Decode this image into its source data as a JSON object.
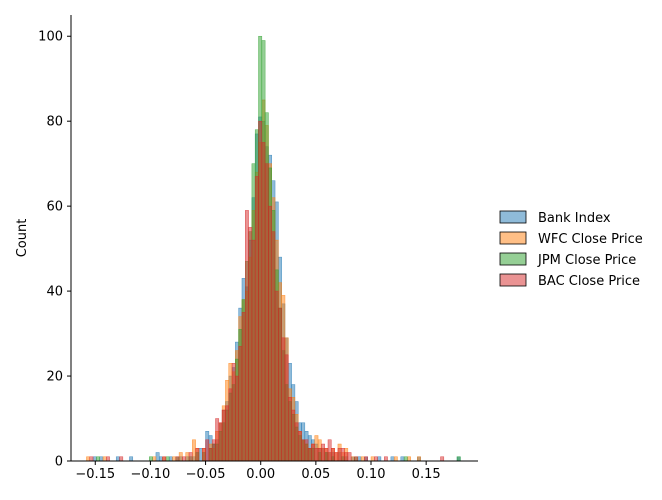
{
  "chart_data": {
    "type": "bar",
    "title": "",
    "xlabel": "",
    "ylabel": "Count",
    "xlim": [
      -0.172,
      0.197
    ],
    "ylim": [
      0,
      105
    ],
    "bin_width": 0.003,
    "x_ticks": [
      -0.15,
      -0.1,
      -0.05,
      0.0,
      0.05,
      0.1,
      0.15
    ],
    "x_tick_labels": [
      "−0.15",
      "−0.10",
      "−0.05",
      "0.00",
      "0.05",
      "0.10",
      "0.15"
    ],
    "y_ticks": [
      0,
      20,
      40,
      60,
      80,
      100
    ],
    "y_tick_labels": [
      "0",
      "20",
      "40",
      "60",
      "80",
      "100"
    ],
    "grid": false,
    "legend_position": "right",
    "series": [
      {
        "name": "Bank Index",
        "color": "#1f77b4",
        "bins": [
          [
            -0.152,
            1
          ],
          [
            -0.146,
            1
          ],
          [
            -0.131,
            1
          ],
          [
            -0.119,
            1
          ],
          [
            -0.095,
            2
          ],
          [
            -0.092,
            1
          ],
          [
            -0.083,
            1
          ],
          [
            -0.074,
            1
          ],
          [
            -0.068,
            1
          ],
          [
            -0.062,
            1
          ],
          [
            -0.056,
            3
          ],
          [
            -0.05,
            7
          ],
          [
            -0.047,
            6
          ],
          [
            -0.044,
            4
          ],
          [
            -0.041,
            5
          ],
          [
            -0.038,
            9
          ],
          [
            -0.035,
            12
          ],
          [
            -0.032,
            14
          ],
          [
            -0.029,
            20
          ],
          [
            -0.026,
            22
          ],
          [
            -0.023,
            28
          ],
          [
            -0.02,
            36
          ],
          [
            -0.017,
            43
          ],
          [
            -0.014,
            41
          ],
          [
            -0.011,
            52
          ],
          [
            -0.008,
            62
          ],
          [
            -0.005,
            77
          ],
          [
            -0.002,
            81
          ],
          [
            0.001,
            80
          ],
          [
            0.004,
            74
          ],
          [
            0.007,
            72
          ],
          [
            0.01,
            66
          ],
          [
            0.013,
            61
          ],
          [
            0.016,
            48
          ],
          [
            0.019,
            37
          ],
          [
            0.022,
            29
          ],
          [
            0.025,
            23
          ],
          [
            0.028,
            18
          ],
          [
            0.031,
            14
          ],
          [
            0.034,
            9
          ],
          [
            0.037,
            9
          ],
          [
            0.04,
            7
          ],
          [
            0.043,
            6
          ],
          [
            0.046,
            5
          ],
          [
            0.049,
            4
          ],
          [
            0.052,
            3
          ],
          [
            0.055,
            3
          ],
          [
            0.058,
            2
          ],
          [
            0.061,
            2
          ],
          [
            0.064,
            2
          ],
          [
            0.07,
            2
          ],
          [
            0.076,
            1
          ],
          [
            0.082,
            1
          ],
          [
            0.088,
            1
          ],
          [
            0.094,
            1
          ],
          [
            0.106,
            1
          ],
          [
            0.118,
            1
          ],
          [
            0.127,
            1
          ],
          [
            0.142,
            1
          ],
          [
            0.178,
            1
          ]
        ]
      },
      {
        "name": "WFC Close Price",
        "color": "#ff7f0e",
        "bins": [
          [
            -0.158,
            1
          ],
          [
            -0.143,
            1
          ],
          [
            -0.098,
            1
          ],
          [
            -0.089,
            1
          ],
          [
            -0.08,
            1
          ],
          [
            -0.074,
            2
          ],
          [
            -0.068,
            2
          ],
          [
            -0.062,
            5
          ],
          [
            -0.059,
            3
          ],
          [
            -0.053,
            3
          ],
          [
            -0.047,
            4
          ],
          [
            -0.044,
            3
          ],
          [
            -0.041,
            7
          ],
          [
            -0.038,
            9
          ],
          [
            -0.035,
            13
          ],
          [
            -0.032,
            19
          ],
          [
            -0.029,
            23
          ],
          [
            -0.026,
            21
          ],
          [
            -0.023,
            26
          ],
          [
            -0.02,
            34
          ],
          [
            -0.017,
            38
          ],
          [
            -0.014,
            40
          ],
          [
            -0.011,
            48
          ],
          [
            -0.008,
            59
          ],
          [
            -0.005,
            68
          ],
          [
            -0.002,
            75
          ],
          [
            0.001,
            85
          ],
          [
            0.004,
            79
          ],
          [
            0.007,
            70
          ],
          [
            0.01,
            62
          ],
          [
            0.013,
            52
          ],
          [
            0.016,
            42
          ],
          [
            0.019,
            39
          ],
          [
            0.022,
            29
          ],
          [
            0.025,
            17
          ],
          [
            0.028,
            15
          ],
          [
            0.031,
            11
          ],
          [
            0.034,
            7
          ],
          [
            0.037,
            5
          ],
          [
            0.04,
            4
          ],
          [
            0.043,
            3
          ],
          [
            0.046,
            4
          ],
          [
            0.049,
            6
          ],
          [
            0.052,
            5
          ],
          [
            0.055,
            3
          ],
          [
            0.058,
            3
          ],
          [
            0.061,
            2
          ],
          [
            0.064,
            3
          ],
          [
            0.067,
            2
          ],
          [
            0.07,
            4
          ],
          [
            0.073,
            2
          ],
          [
            0.076,
            3
          ],
          [
            0.082,
            1
          ],
          [
            0.091,
            1
          ],
          [
            0.1,
            1
          ],
          [
            0.121,
            1
          ],
          [
            0.133,
            1
          ],
          [
            0.142,
            1
          ]
        ]
      },
      {
        "name": "JPM Close Price",
        "color": "#2ca02c",
        "bins": [
          [
            -0.149,
            1
          ],
          [
            -0.101,
            1
          ],
          [
            -0.086,
            1
          ],
          [
            -0.077,
            1
          ],
          [
            -0.065,
            1
          ],
          [
            -0.059,
            2
          ],
          [
            -0.053,
            2
          ],
          [
            -0.047,
            3
          ],
          [
            -0.044,
            4
          ],
          [
            -0.041,
            4
          ],
          [
            -0.038,
            7
          ],
          [
            -0.035,
            9
          ],
          [
            -0.032,
            12
          ],
          [
            -0.029,
            16
          ],
          [
            -0.026,
            18
          ],
          [
            -0.023,
            24
          ],
          [
            -0.02,
            31
          ],
          [
            -0.017,
            38
          ],
          [
            -0.014,
            47
          ],
          [
            -0.011,
            54
          ],
          [
            -0.008,
            70
          ],
          [
            -0.005,
            78
          ],
          [
            -0.002,
            100
          ],
          [
            0.001,
            99
          ],
          [
            0.004,
            82
          ],
          [
            0.007,
            69
          ],
          [
            0.01,
            59
          ],
          [
            0.013,
            45
          ],
          [
            0.016,
            36
          ],
          [
            0.019,
            26
          ],
          [
            0.022,
            18
          ],
          [
            0.025,
            14
          ],
          [
            0.028,
            11
          ],
          [
            0.031,
            8
          ],
          [
            0.034,
            6
          ],
          [
            0.037,
            5
          ],
          [
            0.04,
            4
          ],
          [
            0.043,
            3
          ],
          [
            0.046,
            3
          ],
          [
            0.052,
            2
          ],
          [
            0.058,
            2
          ],
          [
            0.064,
            1
          ],
          [
            0.073,
            1
          ],
          [
            0.085,
            1
          ],
          [
            0.13,
            1
          ],
          [
            0.178,
            1
          ]
        ]
      },
      {
        "name": "BAC Close Price",
        "color": "#d62728",
        "bins": [
          [
            -0.155,
            1
          ],
          [
            -0.14,
            1
          ],
          [
            -0.128,
            1
          ],
          [
            -0.089,
            1
          ],
          [
            -0.077,
            1
          ],
          [
            -0.071,
            1
          ],
          [
            -0.065,
            2
          ],
          [
            -0.059,
            3
          ],
          [
            -0.053,
            3
          ],
          [
            -0.05,
            5
          ],
          [
            -0.047,
            3
          ],
          [
            -0.044,
            5
          ],
          [
            -0.041,
            10
          ],
          [
            -0.038,
            9
          ],
          [
            -0.035,
            12
          ],
          [
            -0.032,
            13
          ],
          [
            -0.029,
            17
          ],
          [
            -0.026,
            23
          ],
          [
            -0.023,
            20
          ],
          [
            -0.02,
            27
          ],
          [
            -0.017,
            35
          ],
          [
            -0.014,
            59
          ],
          [
            -0.011,
            55
          ],
          [
            -0.008,
            52
          ],
          [
            -0.005,
            67
          ],
          [
            -0.002,
            80
          ],
          [
            0.001,
            75
          ],
          [
            0.004,
            70
          ],
          [
            0.007,
            60
          ],
          [
            0.01,
            54
          ],
          [
            0.013,
            40
          ],
          [
            0.016,
            36
          ],
          [
            0.019,
            29
          ],
          [
            0.022,
            25
          ],
          [
            0.025,
            15
          ],
          [
            0.028,
            12
          ],
          [
            0.031,
            9
          ],
          [
            0.034,
            7
          ],
          [
            0.037,
            5
          ],
          [
            0.04,
            5
          ],
          [
            0.043,
            3
          ],
          [
            0.046,
            4
          ],
          [
            0.049,
            3
          ],
          [
            0.052,
            3
          ],
          [
            0.055,
            4
          ],
          [
            0.058,
            3
          ],
          [
            0.061,
            5
          ],
          [
            0.064,
            3
          ],
          [
            0.067,
            2
          ],
          [
            0.07,
            3
          ],
          [
            0.073,
            3
          ],
          [
            0.076,
            2
          ],
          [
            0.079,
            2
          ],
          [
            0.085,
            1
          ],
          [
            0.094,
            1
          ],
          [
            0.103,
            1
          ],
          [
            0.112,
            1
          ],
          [
            0.163,
            1
          ]
        ]
      }
    ]
  }
}
